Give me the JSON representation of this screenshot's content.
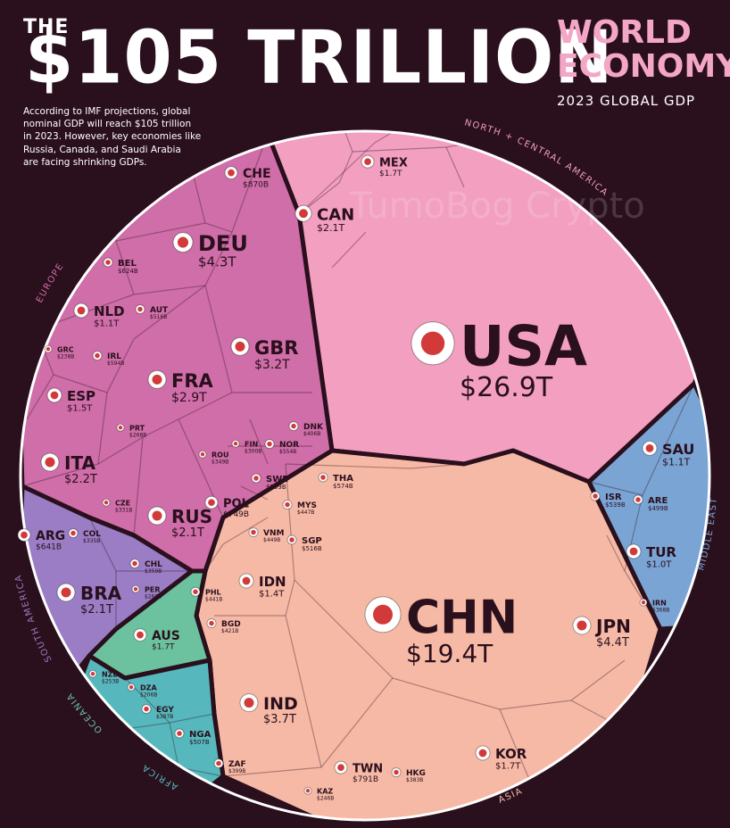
{
  "header": {
    "the": "THE",
    "title": "$105 TRILLION",
    "world": "WORLD",
    "economy": "ECONOMY",
    "subtitle": "2023 GLOBAL GDP"
  },
  "intro_lines": [
    "According to IMF projections, global",
    "nominal GDP will reach $105 trillion",
    "in 2023. However, key economies like",
    "Russia, Canada, and Saudi Arabia",
    "are facing shrinking GDPs."
  ],
  "watermark": "TumoBog Crypto",
  "colors": {
    "background": "#2a0f1d",
    "north_america": "#f29fc0",
    "asia": "#f6b9a5",
    "europe": "#cf6ea8",
    "middle_east": "#7aa4d4",
    "south_america": "#9a7dc4",
    "oceania": "#6cc29e",
    "africa": "#56b8bc"
  },
  "chart_data": {
    "type": "voronoi-treemap",
    "unit": "USD",
    "regions": [
      {
        "name": "NORTH + CENTRAL AMERICA",
        "key": "north_america",
        "countries": [
          {
            "code": "USA",
            "value": "$26.9T"
          },
          {
            "code": "CAN",
            "value": "$2.1T"
          },
          {
            "code": "MEX",
            "value": "$1.7T"
          }
        ]
      },
      {
        "name": "ASIA",
        "key": "asia",
        "countries": [
          {
            "code": "CHN",
            "value": "$19.4T"
          },
          {
            "code": "JPN",
            "value": "$4.4T"
          },
          {
            "code": "IND",
            "value": "$3.7T"
          },
          {
            "code": "KOR",
            "value": "$1.7T"
          },
          {
            "code": "IDN",
            "value": "$1.4T"
          },
          {
            "code": "TWN",
            "value": "$791B"
          },
          {
            "code": "THA",
            "value": "$574B"
          },
          {
            "code": "SGP",
            "value": "$516B"
          },
          {
            "code": "VNM",
            "value": "$449B"
          },
          {
            "code": "MYS",
            "value": "$447B"
          },
          {
            "code": "PHL",
            "value": "$441B"
          },
          {
            "code": "BGD",
            "value": "$421B"
          },
          {
            "code": "HKG",
            "value": "$383B"
          },
          {
            "code": "KAZ",
            "value": "$246B"
          }
        ]
      },
      {
        "name": "EUROPE",
        "key": "europe",
        "countries": [
          {
            "code": "DEU",
            "value": "$4.3T"
          },
          {
            "code": "GBR",
            "value": "$3.2T"
          },
          {
            "code": "FRA",
            "value": "$2.9T"
          },
          {
            "code": "ITA",
            "value": "$2.2T"
          },
          {
            "code": "RUS",
            "value": "$2.1T"
          },
          {
            "code": "ESP",
            "value": "$1.5T"
          },
          {
            "code": "NLD",
            "value": "$1.1T"
          },
          {
            "code": "CHE",
            "value": "$870B"
          },
          {
            "code": "POL",
            "value": "$749B"
          },
          {
            "code": "SWE",
            "value": "$599B"
          },
          {
            "code": "BEL",
            "value": "$624B"
          },
          {
            "code": "IRL",
            "value": "$594B"
          },
          {
            "code": "NOR",
            "value": "$554B"
          },
          {
            "code": "AUT",
            "value": "$516B"
          },
          {
            "code": "DNK",
            "value": "$406B"
          },
          {
            "code": "ROU",
            "value": "$349B"
          },
          {
            "code": "CZE",
            "value": "$331B"
          },
          {
            "code": "FIN",
            "value": "$300B"
          },
          {
            "code": "PRT",
            "value": "$268B"
          },
          {
            "code": "GRC",
            "value": "$238B"
          }
        ]
      },
      {
        "name": "MIDDLE EAST",
        "key": "middle_east",
        "countries": [
          {
            "code": "SAU",
            "value": "$1.1T"
          },
          {
            "code": "TUR",
            "value": "$1.0T"
          },
          {
            "code": "ISR",
            "value": "$539B"
          },
          {
            "code": "ARE",
            "value": "$499B"
          },
          {
            "code": "IRN",
            "value": "$368B"
          }
        ]
      },
      {
        "name": "SOUTH AMERICA",
        "key": "south_america",
        "countries": [
          {
            "code": "BRA",
            "value": "$2.1T"
          },
          {
            "code": "ARG",
            "value": "$641B"
          },
          {
            "code": "COL",
            "value": "$335B"
          },
          {
            "code": "CHL",
            "value": "$359B"
          },
          {
            "code": "PER",
            "value": "$268B"
          }
        ]
      },
      {
        "name": "OCEANIA",
        "key": "oceania",
        "countries": [
          {
            "code": "AUS",
            "value": "$1.7T"
          },
          {
            "code": "NZL",
            "value": "$253B"
          }
        ]
      },
      {
        "name": "AFRICA",
        "key": "africa",
        "countries": [
          {
            "code": "NGA",
            "value": "$507B"
          },
          {
            "code": "EGY",
            "value": "$387B"
          },
          {
            "code": "ZAF",
            "value": "$399B"
          },
          {
            "code": "DZA",
            "value": "$206B"
          }
        ]
      }
    ]
  }
}
